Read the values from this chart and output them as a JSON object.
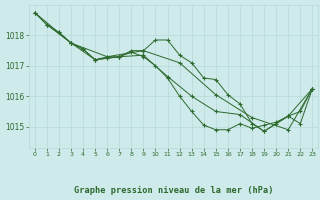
{
  "background_color": "#ceeaea",
  "grid_color_major": "#b8d8d8",
  "grid_color_minor": "#d4ecec",
  "line_color": "#2d6a2d",
  "title": "Graphe pression niveau de la mer (hPa)",
  "xlim": [
    -0.5,
    23.5
  ],
  "ylim": [
    1014.3,
    1019.0
  ],
  "yticks": [
    1015,
    1016,
    1017,
    1018
  ],
  "xticks": [
    0,
    1,
    2,
    3,
    4,
    5,
    6,
    7,
    8,
    9,
    10,
    11,
    12,
    13,
    14,
    15,
    16,
    17,
    18,
    19,
    20,
    21,
    22,
    23
  ],
  "line1_x": [
    0,
    1,
    2,
    3,
    4,
    5,
    6,
    7,
    8,
    9,
    10,
    11,
    12,
    13,
    14,
    15,
    16,
    17,
    18,
    19,
    20,
    21,
    22,
    23
  ],
  "line1_y": [
    1018.75,
    1018.35,
    1018.1,
    1017.75,
    1017.55,
    1017.2,
    1017.3,
    1017.3,
    1017.5,
    1017.5,
    1017.85,
    1017.85,
    1017.35,
    1017.1,
    1016.6,
    1016.55,
    1016.05,
    1015.75,
    1015.1,
    1014.85,
    1015.1,
    1015.35,
    1015.1,
    1016.25
  ],
  "line2_x": [
    0,
    1,
    2,
    3,
    4,
    5,
    6,
    7,
    8,
    9,
    10,
    11,
    12,
    13,
    14,
    15,
    16,
    17,
    18,
    19,
    20,
    21,
    22,
    23
  ],
  "line2_y": [
    1018.75,
    1018.35,
    1018.1,
    1017.75,
    1017.55,
    1017.2,
    1017.25,
    1017.3,
    1017.45,
    1017.3,
    1017.0,
    1016.6,
    1016.0,
    1015.5,
    1015.05,
    1014.9,
    1014.9,
    1015.1,
    1014.95,
    1015.05,
    1015.15,
    1015.35,
    1015.5,
    1016.25
  ],
  "line3_x": [
    0,
    3,
    6,
    9,
    12,
    15,
    18,
    21,
    23
  ],
  "line3_y": [
    1018.75,
    1017.75,
    1017.3,
    1017.5,
    1017.1,
    1016.05,
    1015.3,
    1014.9,
    1016.25
  ],
  "line4_x": [
    1,
    3,
    5,
    7,
    9,
    11,
    13,
    15,
    17,
    19,
    21,
    23
  ],
  "line4_y": [
    1018.35,
    1017.75,
    1017.2,
    1017.3,
    1017.35,
    1016.65,
    1016.0,
    1015.5,
    1015.4,
    1014.85,
    1015.35,
    1016.25
  ],
  "title_color": "#2d6a2d"
}
